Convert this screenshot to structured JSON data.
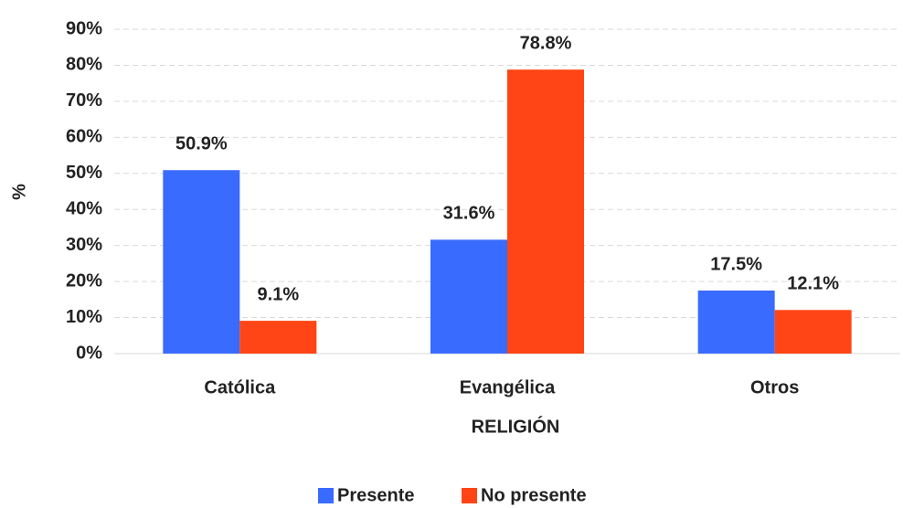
{
  "chart_data": {
    "type": "bar",
    "x_label": "RELIGIÓN",
    "y_label": "%",
    "categories": [
      "Católica",
      "Evangélica",
      "Otros"
    ],
    "series": [
      {
        "name": "Presente",
        "color": "#3a6bff",
        "values": [
          50.9,
          31.6,
          17.5
        ],
        "value_labels": [
          "50.9%",
          "31.6%",
          "17.5%"
        ]
      },
      {
        "name": "No presente",
        "color": "#ff4515",
        "values": [
          9.1,
          78.8,
          12.1
        ],
        "value_labels": [
          "9.1%",
          "78.8%",
          "12.1%"
        ]
      }
    ],
    "ylim": [
      0,
      90
    ],
    "yticks": [
      {
        "value": 0,
        "label": "0%"
      },
      {
        "value": 10,
        "label": "10%"
      },
      {
        "value": 20,
        "label": "20%"
      },
      {
        "value": 30,
        "label": "30%"
      },
      {
        "value": 40,
        "label": "40%"
      },
      {
        "value": 50,
        "label": "50%"
      },
      {
        "value": 60,
        "label": "60%"
      },
      {
        "value": 70,
        "label": "70%"
      },
      {
        "value": 80,
        "label": "80%"
      },
      {
        "value": 90,
        "label": "90%"
      }
    ],
    "grid": true,
    "legend": "bottom"
  }
}
